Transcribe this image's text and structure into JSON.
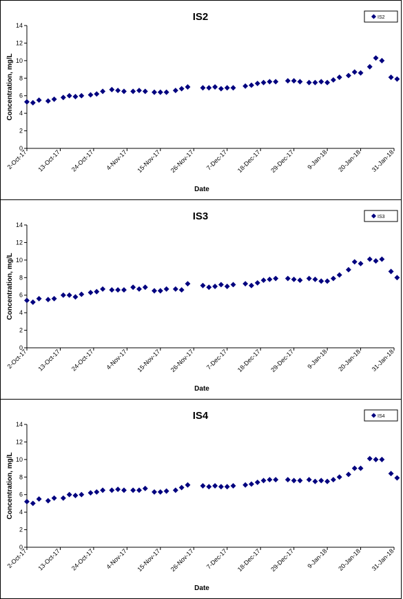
{
  "chart_data": [
    {
      "type": "scatter",
      "title": "IS2",
      "xlabel": "Date",
      "ylabel": "Concentration, mg/L",
      "ylim": [
        0,
        14
      ],
      "yticks": [
        "0",
        "2",
        "4",
        "6",
        "8",
        "10",
        "12",
        "14"
      ],
      "xlim": [
        "2017-10-02",
        "2018-01-31"
      ],
      "xticks": [
        "2-Oct-17",
        "13-Oct-17",
        "24-Oct-17",
        "4-Nov-17",
        "15-Nov-17",
        "26-Nov-17",
        "7-Dec-17",
        "18-Dec-17",
        "29-Dec-17",
        "9-Jan-18",
        "20-Jan-18",
        "31-Jan-18"
      ],
      "grid": false,
      "legend": "top-right",
      "marker_color": "#00007f",
      "series": [
        {
          "name": "IS2",
          "x": [
            "2017-10-02",
            "2017-10-04",
            "2017-10-06",
            "2017-10-09",
            "2017-10-11",
            "2017-10-14",
            "2017-10-16",
            "2017-10-18",
            "2017-10-20",
            "2017-10-23",
            "2017-10-25",
            "2017-10-27",
            "2017-10-30",
            "2017-11-01",
            "2017-11-03",
            "2017-11-06",
            "2017-11-08",
            "2017-11-10",
            "2017-11-13",
            "2017-11-15",
            "2017-11-17",
            "2017-11-20",
            "2017-11-22",
            "2017-11-24",
            "2017-11-29",
            "2017-12-01",
            "2017-12-03",
            "2017-12-05",
            "2017-12-07",
            "2017-12-09",
            "2017-12-13",
            "2017-12-15",
            "2017-12-17",
            "2017-12-19",
            "2017-12-21",
            "2017-12-23",
            "2017-12-27",
            "2017-12-29",
            "2017-12-31",
            "2018-01-03",
            "2018-01-05",
            "2018-01-07",
            "2018-01-09",
            "2018-01-11",
            "2018-01-13",
            "2018-01-16",
            "2018-01-18",
            "2018-01-20",
            "2018-01-23",
            "2018-01-25",
            "2018-01-27",
            "2018-01-30",
            "2018-02-01"
          ],
          "y": [
            5.3,
            5.2,
            5.5,
            5.4,
            5.6,
            5.8,
            6.0,
            5.9,
            6.0,
            6.1,
            6.2,
            6.5,
            6.7,
            6.6,
            6.5,
            6.5,
            6.6,
            6.5,
            6.4,
            6.4,
            6.4,
            6.6,
            6.8,
            7.0,
            6.9,
            6.9,
            7.0,
            6.8,
            6.9,
            6.9,
            7.1,
            7.2,
            7.4,
            7.5,
            7.6,
            7.6,
            7.7,
            7.7,
            7.6,
            7.5,
            7.5,
            7.6,
            7.5,
            7.8,
            8.1,
            8.3,
            8.7,
            8.6,
            9.3,
            10.3,
            10.0,
            8.1,
            7.9
          ]
        }
      ]
    },
    {
      "type": "scatter",
      "title": "IS3",
      "xlabel": "Date",
      "ylabel": "Concentration, mg/L",
      "ylim": [
        0,
        14
      ],
      "yticks": [
        "0",
        "2",
        "4",
        "6",
        "8",
        "10",
        "12",
        "14"
      ],
      "xlim": [
        "2017-10-02",
        "2018-01-31"
      ],
      "xticks": [
        "2-Oct-17",
        "13-Oct-17",
        "24-Oct-17",
        "4-Nov-17",
        "15-Nov-17",
        "26-Nov-17",
        "7-Dec-17",
        "18-Dec-17",
        "29-Dec-17",
        "9-Jan-18",
        "20-Jan-18",
        "31-Jan-18"
      ],
      "grid": false,
      "legend": "top-right",
      "marker_color": "#00007f",
      "series": [
        {
          "name": "IS3",
          "x": [
            "2017-10-02",
            "2017-10-04",
            "2017-10-06",
            "2017-10-09",
            "2017-10-11",
            "2017-10-14",
            "2017-10-16",
            "2017-10-18",
            "2017-10-20",
            "2017-10-23",
            "2017-10-25",
            "2017-10-27",
            "2017-10-30",
            "2017-11-01",
            "2017-11-03",
            "2017-11-06",
            "2017-11-08",
            "2017-11-10",
            "2017-11-13",
            "2017-11-15",
            "2017-11-17",
            "2017-11-20",
            "2017-11-22",
            "2017-11-24",
            "2017-11-29",
            "2017-12-01",
            "2017-12-03",
            "2017-12-05",
            "2017-12-07",
            "2017-12-09",
            "2017-12-13",
            "2017-12-15",
            "2017-12-17",
            "2017-12-19",
            "2017-12-21",
            "2017-12-23",
            "2017-12-27",
            "2017-12-29",
            "2017-12-31",
            "2018-01-03",
            "2018-01-05",
            "2018-01-07",
            "2018-01-09",
            "2018-01-11",
            "2018-01-13",
            "2018-01-16",
            "2018-01-18",
            "2018-01-20",
            "2018-01-23",
            "2018-01-25",
            "2018-01-27",
            "2018-01-30",
            "2018-02-01"
          ],
          "y": [
            5.4,
            5.2,
            5.6,
            5.5,
            5.6,
            6.0,
            6.0,
            5.8,
            6.1,
            6.3,
            6.4,
            6.7,
            6.6,
            6.6,
            6.6,
            6.9,
            6.7,
            6.9,
            6.5,
            6.5,
            6.7,
            6.7,
            6.6,
            7.3,
            7.1,
            6.9,
            7.0,
            7.2,
            7.0,
            7.2,
            7.3,
            7.1,
            7.4,
            7.7,
            7.8,
            7.9,
            7.9,
            7.8,
            7.7,
            7.9,
            7.8,
            7.6,
            7.6,
            7.9,
            8.3,
            8.9,
            9.8,
            9.6,
            10.1,
            9.9,
            10.1,
            8.7,
            8.0
          ]
        }
      ]
    },
    {
      "type": "scatter",
      "title": "IS4",
      "xlabel": "Date",
      "ylabel": "Concentration, mg/L",
      "ylim": [
        0,
        14
      ],
      "yticks": [
        "0",
        "2",
        "4",
        "6",
        "8",
        "10",
        "12",
        "14"
      ],
      "xlim": [
        "2017-10-02",
        "2018-01-31"
      ],
      "xticks": [
        "2-Oct-17",
        "13-Oct-17",
        "24-Oct-17",
        "4-Nov-17",
        "15-Nov-17",
        "26-Nov-17",
        "7-Dec-17",
        "18-Dec-17",
        "29-Dec-17",
        "9-Jan-18",
        "20-Jan-18",
        "31-Jan-18"
      ],
      "grid": false,
      "legend": "top-right",
      "marker_color": "#00007f",
      "series": [
        {
          "name": "IS4",
          "x": [
            "2017-10-02",
            "2017-10-04",
            "2017-10-06",
            "2017-10-09",
            "2017-10-11",
            "2017-10-14",
            "2017-10-16",
            "2017-10-18",
            "2017-10-20",
            "2017-10-23",
            "2017-10-25",
            "2017-10-27",
            "2017-10-30",
            "2017-11-01",
            "2017-11-03",
            "2017-11-06",
            "2017-11-08",
            "2017-11-10",
            "2017-11-13",
            "2017-11-15",
            "2017-11-17",
            "2017-11-20",
            "2017-11-22",
            "2017-11-24",
            "2017-11-29",
            "2017-12-01",
            "2017-12-03",
            "2017-12-05",
            "2017-12-07",
            "2017-12-09",
            "2017-12-13",
            "2017-12-15",
            "2017-12-17",
            "2017-12-19",
            "2017-12-21",
            "2017-12-23",
            "2017-12-27",
            "2017-12-29",
            "2017-12-31",
            "2018-01-03",
            "2018-01-05",
            "2018-01-07",
            "2018-01-09",
            "2018-01-11",
            "2018-01-13",
            "2018-01-16",
            "2018-01-18",
            "2018-01-20",
            "2018-01-23",
            "2018-01-25",
            "2018-01-27",
            "2018-01-30",
            "2018-02-01"
          ],
          "y": [
            5.2,
            5.0,
            5.5,
            5.3,
            5.6,
            5.6,
            6.0,
            5.9,
            6.0,
            6.2,
            6.3,
            6.5,
            6.5,
            6.6,
            6.5,
            6.5,
            6.5,
            6.7,
            6.3,
            6.3,
            6.4,
            6.5,
            6.8,
            7.1,
            7.0,
            6.9,
            7.0,
            6.9,
            6.9,
            7.0,
            7.1,
            7.2,
            7.4,
            7.6,
            7.7,
            7.7,
            7.7,
            7.6,
            7.6,
            7.7,
            7.5,
            7.6,
            7.5,
            7.7,
            8.0,
            8.3,
            9.0,
            9.0,
            10.1,
            10.0,
            10.0,
            8.4,
            7.9
          ]
        }
      ]
    }
  ]
}
